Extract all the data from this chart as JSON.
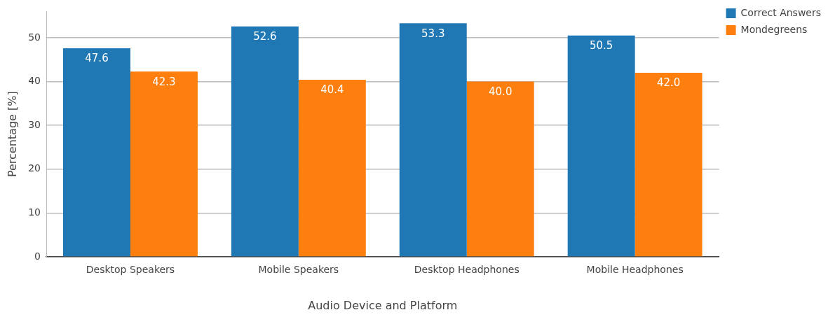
{
  "chart_data": {
    "type": "bar",
    "xlabel": "Audio Device and Platform",
    "ylabel": "Percentage [%]",
    "categories": [
      "Desktop Speakers",
      "Mobile Speakers",
      "Desktop Headphones",
      "Mobile Headphones"
    ],
    "series": [
      {
        "name": "Correct Answers",
        "color": "#1f77b4",
        "values": [
          47.6,
          52.6,
          53.3,
          50.5
        ],
        "value_labels": [
          "47.6",
          "52.6",
          "53.3",
          "50.5"
        ]
      },
      {
        "name": "Mondegreens",
        "color": "#ff7f0e",
        "values": [
          42.3,
          40.4,
          40.0,
          42.0
        ],
        "value_labels": [
          "42.3",
          "40.4",
          "40.0",
          "42.0"
        ]
      }
    ],
    "ylim": [
      0,
      56
    ],
    "yticks": [
      0,
      10,
      20,
      30,
      40,
      50
    ],
    "grid": "y",
    "legend": "top right"
  }
}
